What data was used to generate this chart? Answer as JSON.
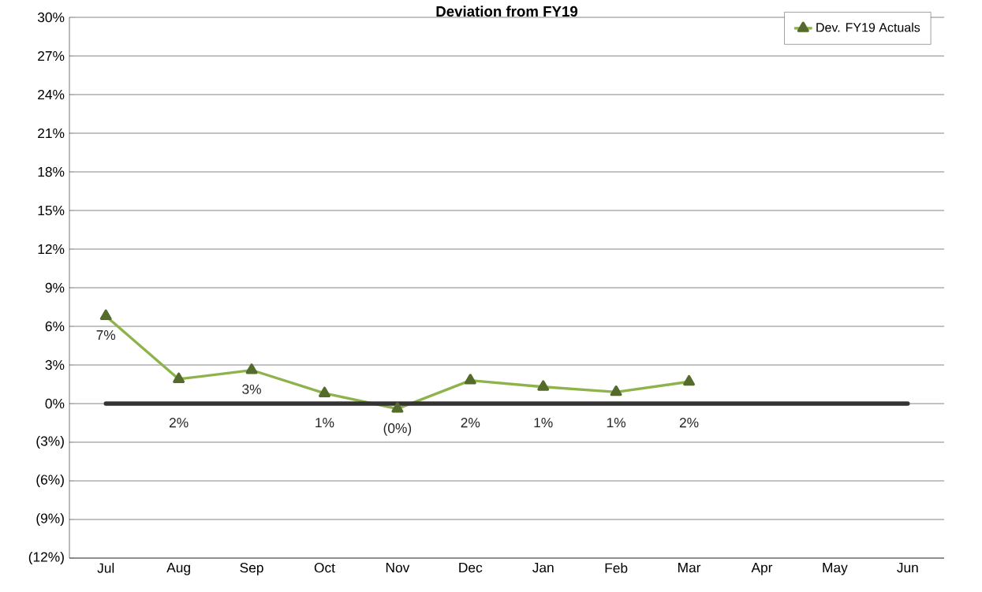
{
  "chart_data": {
    "type": "line",
    "title": "Deviation from FY19",
    "categories": [
      "Jul",
      "Aug",
      "Sep",
      "Oct",
      "Nov",
      "Dec",
      "Jan",
      "Feb",
      "Mar",
      "Apr",
      "May",
      "Jun"
    ],
    "series": [
      {
        "name": "Dev. FY19 Actuals",
        "color": "#8db34a",
        "values": [
          6.8,
          1.9,
          2.6,
          0.8,
          -0.4,
          1.8,
          1.3,
          0.9,
          1.7,
          null,
          null,
          null
        ],
        "value_labels": [
          "7%",
          "2%",
          "3%",
          "1%",
          "(0%)",
          "2%",
          "1%",
          "1%",
          "2%",
          null,
          null,
          null
        ]
      }
    ],
    "ylim": [
      -12,
      30
    ],
    "yticks": [
      {
        "value": -12,
        "label": "(12%)"
      },
      {
        "value": -9,
        "label": "(9%)"
      },
      {
        "value": -6,
        "label": "(6%)"
      },
      {
        "value": -3,
        "label": "(3%)"
      },
      {
        "value": 0,
        "label": "0%"
      },
      {
        "value": 3,
        "label": "3%"
      },
      {
        "value": 6,
        "label": "6%"
      },
      {
        "value": 9,
        "label": "9%"
      },
      {
        "value": 12,
        "label": "12%"
      },
      {
        "value": 15,
        "label": "15%"
      },
      {
        "value": 18,
        "label": "18%"
      },
      {
        "value": 21,
        "label": "21%"
      },
      {
        "value": 24,
        "label": "24%"
      },
      {
        "value": 27,
        "label": "27%"
      },
      {
        "value": 30,
        "label": "30%"
      }
    ],
    "ref_lines": [
      {
        "axis": "y",
        "value": 0,
        "color": "#333333",
        "line_style": "solid"
      }
    ],
    "grid": "y",
    "legend": "top right",
    "marker": "triangle",
    "line_style": "solid"
  }
}
